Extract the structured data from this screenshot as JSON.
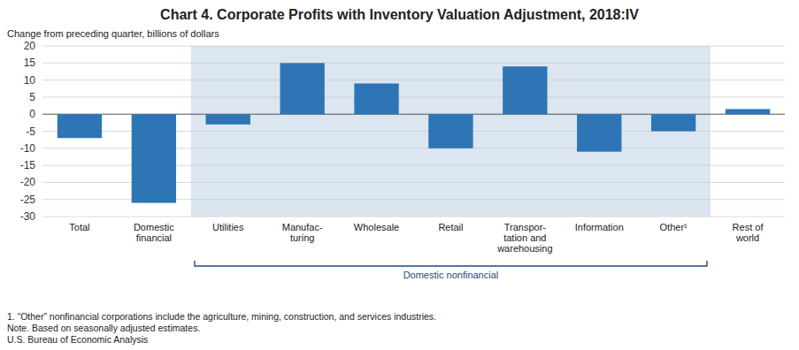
{
  "chart_data": {
    "type": "bar",
    "title": "Chart 4. Corporate Profits with Inventory Valuation Adjustment, 2018:IV",
    "y_label": "Change from preceding quarter, billions of dollars",
    "categories": [
      "Total",
      "Domestic\nfinancial",
      "Utilities",
      "Manufac-\nturing",
      "Wholesale",
      "Retail",
      "Transpor-\ntation and\nwarehousing",
      "Information",
      "Other¹",
      "Rest of\nworld"
    ],
    "values": [
      -7.0,
      -26.0,
      -3.0,
      15.0,
      9.0,
      -10.0,
      14.0,
      -11.0,
      -5.0,
      1.5
    ],
    "color": "#2E75B6",
    "ylim": [
      -30,
      20
    ],
    "yticks": [
      -30,
      -25,
      -20,
      -15,
      -10,
      -5,
      0,
      5,
      10,
      15,
      20
    ],
    "grid": true,
    "annotations": [
      {
        "text": "Domestic nonfinancial",
        "from": "Utilities",
        "to": "Other¹",
        "color": "#1F4E79",
        "background": "#DCE6F1"
      }
    ],
    "notes": [
      "1. “Other” nonfinancial corporations include the agriculture, mining, construction, and services industries.",
      "Note. Based on seasonally adjusted estimates.",
      "U.S. Bureau of Economic Analysis"
    ]
  }
}
